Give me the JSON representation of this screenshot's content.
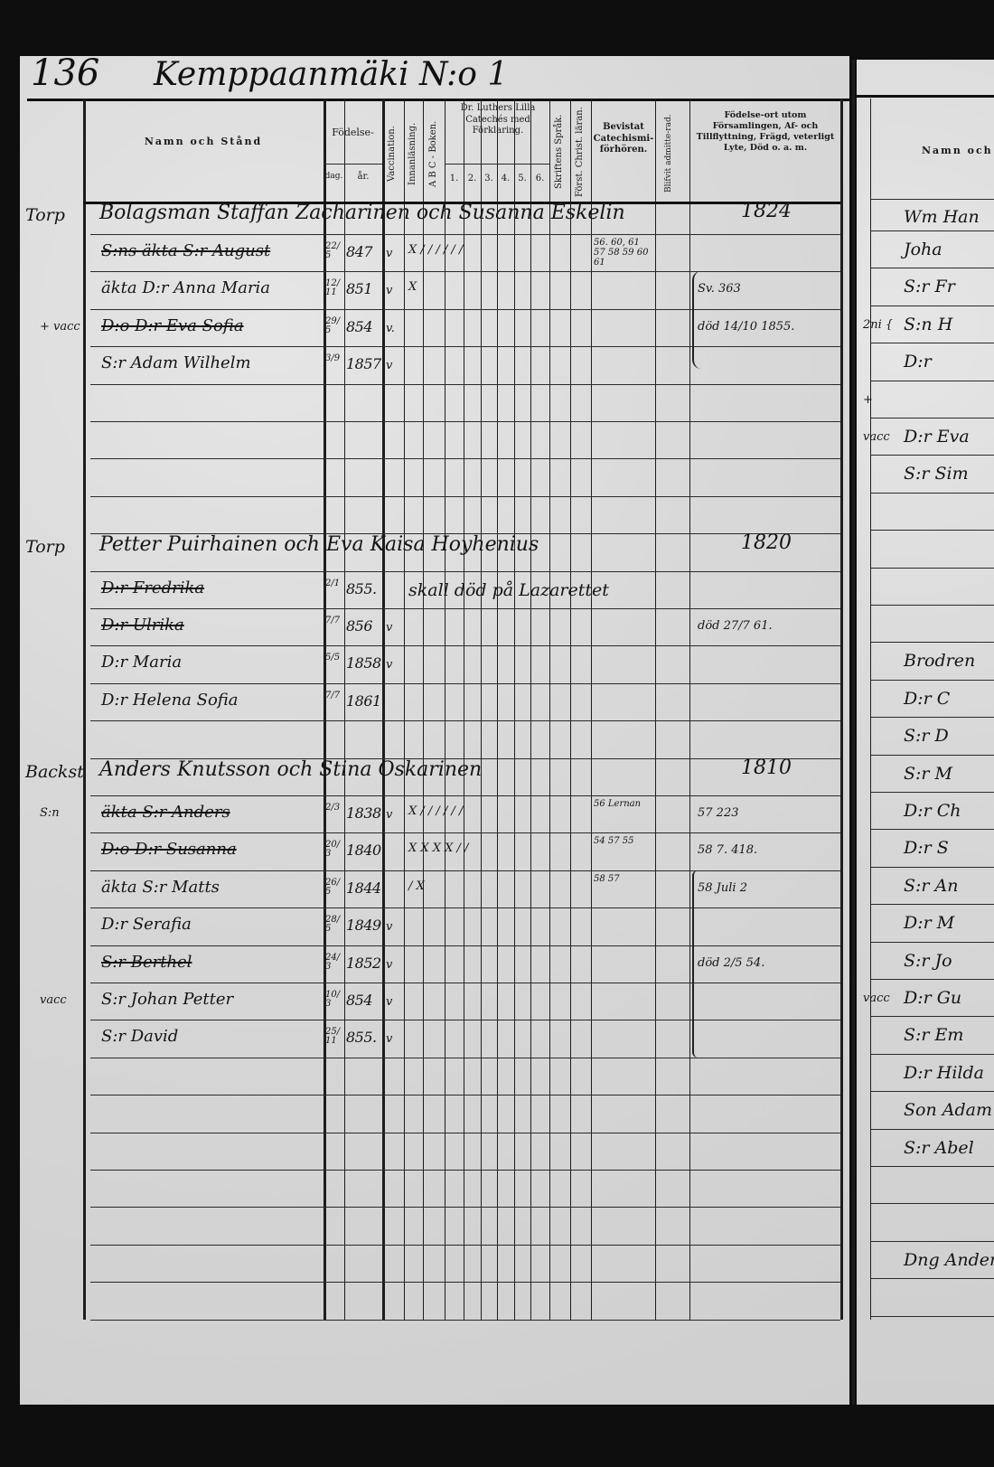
{
  "title": {
    "page_number": "136",
    "place": "Kemppaanmäki N:o 1"
  },
  "columns": {
    "name": "Namn och Stånd",
    "birth": "Födelse-",
    "day": "dag.",
    "year": "år.",
    "vaccination": "Vaccination.",
    "reading": "Innanläsning.",
    "abc": "A B C - Boken.",
    "catechism": "Dr. Luthers Lilla Catechés med Förklaring.",
    "catechism_parts": [
      "1.",
      "2.",
      "3.",
      "4.",
      "5.",
      "6."
    ],
    "scripture": "Skriftens Språk.",
    "christian": "Först. Christ. läran.",
    "examinations": "Bevistat Catechismi-förhören.",
    "admitted": "Blifvit admitte-rad.",
    "remarks": "Födelse-ort utom Församlingen, Af- och Tillflyttning, Frägd, veterligt Lyte, Död o. a. m.",
    "right_page_name": "Namn och"
  },
  "households": [
    {
      "place": "Torp",
      "head": "Bolagsman Staffan Zacharinen och Susanna Eskelin",
      "head_year": "1824",
      "members": [
        {
          "prefix": "",
          "name": "S:ns äkta S:r August",
          "struck": true,
          "day": "22/5",
          "year": "847",
          "vacc": "v",
          "marks": "X / / / / / /",
          "exam": "56. 60, 61 57 58 59 60 61",
          "note": ""
        },
        {
          "prefix": "",
          "name": "äkta D:r Anna Maria",
          "struck": false,
          "day": "12/11",
          "year": "851",
          "vacc": "v",
          "marks": "X",
          "exam": "",
          "note": "Sv. 363"
        },
        {
          "prefix": "+ vacc",
          "name": "D:o D:r Eva Sofia",
          "struck": true,
          "day": "29/5",
          "year": "854",
          "vacc": "v.",
          "marks": "",
          "exam": "",
          "note": "död 14/10 1855."
        },
        {
          "prefix": "",
          "name": "S:r Adam Wilhelm",
          "struck": false,
          "day": "3/9",
          "year": "1857",
          "vacc": "v",
          "marks": "",
          "exam": "",
          "note": ""
        }
      ]
    },
    {
      "place": "Torp",
      "head": "Petter Puirhainen och Eva Kaisa Hoyhenius",
      "head_year": "1820",
      "members": [
        {
          "prefix": "",
          "name": "D:r Fredrika",
          "struck": true,
          "day": "2/1",
          "year": "855.",
          "vacc": "",
          "marks": "skall död på Lazarettet",
          "exam": "",
          "note": ""
        },
        {
          "prefix": "",
          "name": "D:r Ulrika",
          "struck": true,
          "day": "7/7",
          "year": "856",
          "vacc": "v",
          "marks": "",
          "exam": "",
          "note": "död 27/7 61."
        },
        {
          "prefix": "",
          "name": "D:r Maria",
          "struck": false,
          "day": "5/5",
          "year": "1858",
          "vacc": "v",
          "marks": "",
          "exam": "",
          "note": ""
        },
        {
          "prefix": "",
          "name": "D:r Helena Sofia",
          "struck": false,
          "day": "7/7",
          "year": "1861",
          "vacc": "",
          "marks": "",
          "exam": "",
          "note": ""
        }
      ]
    },
    {
      "place": "Backst",
      "head": "Anders Knutsson och Stina Oskarinen",
      "head_year": "1810",
      "members": [
        {
          "prefix": "S:n",
          "name": "äkta S:r Anders",
          "struck": true,
          "day": "2/3",
          "year": "1838",
          "vacc": "v",
          "marks": "X / / / / / /",
          "exam": "56 Lernan",
          "note": "57 223"
        },
        {
          "prefix": "",
          "name": "D:o D:r Susanna",
          "struck": true,
          "day": "20/3",
          "year": "1840",
          "vacc": "",
          "marks": "X X X X / /",
          "exam": "54 57 55",
          "note": "58 7. 418."
        },
        {
          "prefix": "",
          "name": "äkta S:r Matts",
          "struck": false,
          "day": "26/5",
          "year": "1844",
          "vacc": "",
          "marks": "/ X",
          "exam": "58 57",
          "note": "58 Juli 2"
        },
        {
          "prefix": "",
          "name": "D:r Serafia",
          "struck": false,
          "day": "28/5",
          "year": "1849",
          "vacc": "v",
          "marks": "",
          "exam": "",
          "note": ""
        },
        {
          "prefix": "",
          "name": "S:r Berthel",
          "struck": true,
          "day": "24/3",
          "year": "1852",
          "vacc": "v",
          "marks": "",
          "exam": "",
          "note": "död 2/5 54."
        },
        {
          "prefix": "vacc",
          "name": "S:r Johan Petter",
          "struck": false,
          "day": "10/3",
          "year": "854",
          "vacc": "v",
          "marks": "",
          "exam": "",
          "note": ""
        },
        {
          "prefix": "",
          "name": "S:r David",
          "struck": false,
          "day": "25/11",
          "year": "855.",
          "vacc": "v",
          "marks": "",
          "exam": "",
          "note": ""
        }
      ]
    }
  ],
  "right_page_entries": [
    {
      "prefix": "",
      "text": "Wm Han"
    },
    {
      "prefix": "",
      "text": "Joha"
    },
    {
      "prefix": "",
      "text": "S:r Fr"
    },
    {
      "prefix": "2ni {",
      "text": "S:n H"
    },
    {
      "prefix": "",
      "text": "D:r"
    },
    {
      "prefix": "+",
      "text": ""
    },
    {
      "prefix": "vacc",
      "text": "D:r Eva"
    },
    {
      "prefix": "",
      "text": "S:r Sim"
    },
    {
      "prefix": "",
      "text": "Brodren"
    },
    {
      "prefix": "",
      "text": "D:r C"
    },
    {
      "prefix": "",
      "text": "S:r D"
    },
    {
      "prefix": "",
      "text": "S:r M"
    },
    {
      "prefix": "",
      "text": "D:r Ch"
    },
    {
      "prefix": "",
      "text": "D:r S"
    },
    {
      "prefix": "",
      "text": "S:r An"
    },
    {
      "prefix": "",
      "text": "D:r M"
    },
    {
      "prefix": "",
      "text": "S:r Jo"
    },
    {
      "prefix": "vacc",
      "text": "D:r Gu"
    },
    {
      "prefix": "",
      "text": "S:r Em"
    },
    {
      "prefix": "",
      "text": "D:r Hilda"
    },
    {
      "prefix": "",
      "text": "Son Adam E"
    },
    {
      "prefix": "",
      "text": "S:r Abel"
    },
    {
      "prefix": "",
      "text": "Dng Anders"
    }
  ]
}
